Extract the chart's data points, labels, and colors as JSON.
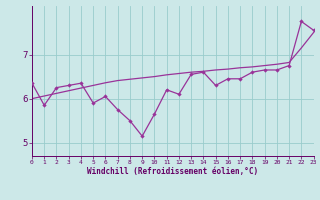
{
  "x": [
    0,
    1,
    2,
    3,
    4,
    5,
    6,
    7,
    8,
    9,
    10,
    11,
    12,
    13,
    14,
    15,
    16,
    17,
    18,
    19,
    20,
    21,
    22,
    23
  ],
  "y_line": [
    6.35,
    5.85,
    6.25,
    6.3,
    6.35,
    5.9,
    6.05,
    5.75,
    5.5,
    5.15,
    5.65,
    6.2,
    6.1,
    6.55,
    6.6,
    6.3,
    6.45,
    6.45,
    6.6,
    6.65,
    6.65,
    6.75,
    7.75,
    7.55
  ],
  "y_trend": [
    6.0,
    6.06,
    6.12,
    6.18,
    6.24,
    6.3,
    6.36,
    6.41,
    6.44,
    6.47,
    6.5,
    6.54,
    6.57,
    6.6,
    6.62,
    6.65,
    6.67,
    6.7,
    6.72,
    6.75,
    6.78,
    6.82,
    7.15,
    7.5
  ],
  "bg_color": "#cce8e8",
  "line_color": "#993399",
  "trend_color": "#993399",
  "grid_color": "#99cccc",
  "axis_color": "#660066",
  "tick_color": "#660066",
  "xlabel": "Windchill (Refroidissement éolien,°C)",
  "yticks": [
    5,
    6,
    7
  ],
  "xticks": [
    0,
    1,
    2,
    3,
    4,
    5,
    6,
    7,
    8,
    9,
    10,
    11,
    12,
    13,
    14,
    15,
    16,
    17,
    18,
    19,
    20,
    21,
    22,
    23
  ],
  "xlim": [
    0,
    23
  ],
  "ylim": [
    4.7,
    8.1
  ]
}
